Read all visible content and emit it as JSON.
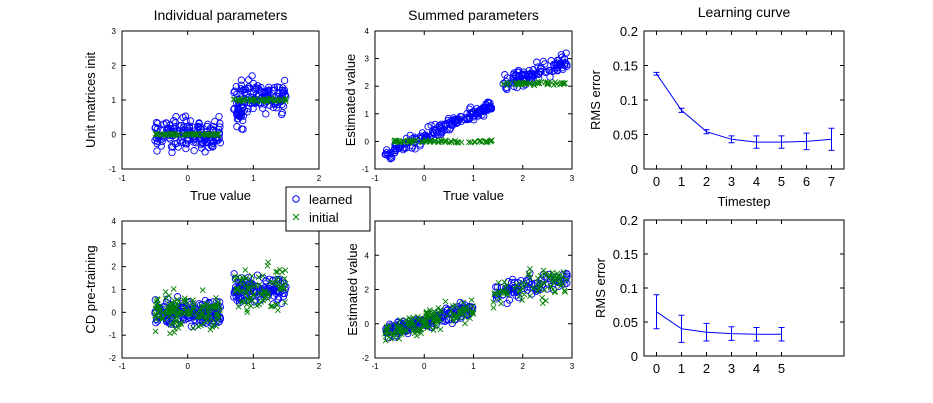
{
  "chart_data": [
    {
      "type": "scatter",
      "title": "Individual parameters",
      "xlabel": "True value",
      "ylabel": "Unit matrices init",
      "xlim": [
        -1,
        2
      ],
      "ylim": [
        -1,
        3
      ],
      "xticks": [
        "-1",
        "0",
        "1",
        "2"
      ],
      "yticks": [
        "-1",
        "0",
        "1",
        "2",
        "3"
      ],
      "series": [
        {
          "name": "learned",
          "color": "#0000ff",
          "marker": "circle",
          "clusters": [
            {
              "x_range": [
                -0.5,
                0.5
              ],
              "y_center": 0.0,
              "y_spread": 0.45,
              "n": 160
            },
            {
              "x_range": [
                0.7,
                1.5
              ],
              "y_center": 1.1,
              "y_spread": 0.45,
              "n": 130
            },
            {
              "x_range": [
                0.75,
                0.85
              ],
              "y_center": 0.6,
              "y_spread": 0.35,
              "n": 25
            }
          ]
        },
        {
          "name": "initial",
          "color": "#008000",
          "marker": "x",
          "clusters": [
            {
              "x_range": [
                -0.5,
                0.5
              ],
              "y_center": 0.0,
              "y_spread": 0.03,
              "n": 60
            },
            {
              "x_range": [
                0.7,
                1.5
              ],
              "y_center": 1.0,
              "y_spread": 0.05,
              "n": 50
            }
          ]
        }
      ]
    },
    {
      "type": "scatter",
      "title": "Summed parameters",
      "xlabel": "True value",
      "ylabel": "Estimated value",
      "xlim": [
        -1,
        3
      ],
      "ylim": [
        -1,
        4
      ],
      "xticks": [
        "-1",
        "0",
        "1",
        "2",
        "3"
      ],
      "yticks": [
        "-1",
        "0",
        "1",
        "2",
        "3",
        "4"
      ],
      "series": [
        {
          "name": "learned",
          "color": "#0000ff",
          "marker": "circle",
          "clusters": [
            {
              "x_range": [
                -0.8,
                1.4
              ],
              "slope": 0.85,
              "intercept": 0.15,
              "spread": 0.25,
              "n": 180
            },
            {
              "x_range": [
                1.6,
                2.9
              ],
              "slope": 0.7,
              "intercept": 0.9,
              "spread": 0.3,
              "n": 110
            }
          ]
        },
        {
          "name": "initial",
          "color": "#008000",
          "marker": "x",
          "clusters": [
            {
              "x_range": [
                -0.7,
                1.4
              ],
              "y_center": 0.0,
              "y_spread": 0.05,
              "n": 70
            },
            {
              "x_range": [
                1.6,
                2.9
              ],
              "y_center": 2.1,
              "y_spread": 0.06,
              "n": 50
            }
          ]
        }
      ]
    },
    {
      "type": "line",
      "title": "Learning curve",
      "xlabel": "Timestep",
      "ylabel": "RMS error",
      "xlim": [
        -0.5,
        7.5
      ],
      "ylim": [
        0,
        0.2
      ],
      "xticks": [
        "0",
        "1",
        "2",
        "3",
        "4",
        "5",
        "6",
        "7"
      ],
      "yticks": [
        "0",
        "0.05",
        "0.1",
        "0.15",
        "0.2"
      ],
      "x": [
        0,
        1,
        2,
        3,
        4,
        5,
        6,
        7
      ],
      "y": [
        0.138,
        0.085,
        0.054,
        0.043,
        0.039,
        0.039,
        0.04,
        0.043
      ],
      "err": [
        0.002,
        0.003,
        0.003,
        0.005,
        0.009,
        0.009,
        0.012,
        0.016
      ],
      "color": "#0000ff"
    },
    {
      "type": "scatter",
      "title": "",
      "xlabel": "",
      "ylabel": "CD pre-training",
      "xlim": [
        -1,
        2
      ],
      "ylim": [
        -2,
        4
      ],
      "xticks": [
        "-1",
        "0",
        "1",
        "2"
      ],
      "yticks": [
        "-2",
        "-1",
        "0",
        "1",
        "2",
        "3",
        "4"
      ],
      "series": [
        {
          "name": "learned",
          "color": "#0000ff",
          "marker": "circle",
          "clusters": [
            {
              "x_range": [
                -0.5,
                0.5
              ],
              "y_center": 0.0,
              "y_spread": 0.6,
              "n": 170
            },
            {
              "x_range": [
                0.7,
                1.5
              ],
              "y_center": 1.0,
              "y_spread": 0.6,
              "n": 120
            }
          ]
        },
        {
          "name": "initial",
          "color": "#008000",
          "marker": "x",
          "clusters": [
            {
              "x_range": [
                -0.5,
                0.5
              ],
              "y_center": 0.0,
              "y_spread": 0.7,
              "n": 150
            },
            {
              "x_range": [
                0.7,
                1.5
              ],
              "y_center": 1.1,
              "y_spread": 0.9,
              "n": 90
            }
          ]
        }
      ]
    },
    {
      "type": "scatter",
      "title": "",
      "xlabel": "",
      "ylabel": "Estimated value",
      "xlim": [
        -1,
        3
      ],
      "ylim": [
        -2,
        6
      ],
      "xticks": [
        "-1",
        "0",
        "1",
        "2",
        "3"
      ],
      "yticks": [
        "-2",
        "0",
        "2",
        "4",
        "6"
      ],
      "series": [
        {
          "name": "learned",
          "color": "#0000ff",
          "marker": "circle",
          "clusters": [
            {
              "x_range": [
                -0.8,
                1.0
              ],
              "slope": 0.8,
              "intercept": 0.1,
              "spread": 0.45,
              "n": 170
            },
            {
              "x_range": [
                1.4,
                2.9
              ],
              "slope": 0.6,
              "intercept": 0.9,
              "spread": 0.55,
              "n": 90
            }
          ]
        },
        {
          "name": "initial",
          "color": "#008000",
          "marker": "x",
          "clusters": [
            {
              "x_range": [
                -0.8,
                1.0
              ],
              "slope": 0.8,
              "intercept": 0.1,
              "spread": 0.6,
              "n": 150
            },
            {
              "x_range": [
                1.4,
                2.9
              ],
              "slope": 0.6,
              "intercept": 0.9,
              "spread": 0.9,
              "n": 80
            }
          ]
        }
      ]
    },
    {
      "type": "line",
      "title": "",
      "xlabel": "",
      "ylabel": "RMS error",
      "xlim": [
        -0.5,
        7.5
      ],
      "ylim": [
        0,
        0.2
      ],
      "xticks": [
        "0",
        "1",
        "2",
        "3",
        "4",
        "5"
      ],
      "yticks": [
        "0",
        "0.05",
        "0.1",
        "0.15",
        "0.2"
      ],
      "x": [
        0,
        1,
        2,
        3,
        4,
        5
      ],
      "y": [
        0.065,
        0.04,
        0.035,
        0.033,
        0.032,
        0.032
      ],
      "err": [
        0.025,
        0.02,
        0.013,
        0.01,
        0.01,
        0.01
      ],
      "color": "#0000ff"
    }
  ],
  "legend": {
    "entries": [
      {
        "label": "learned",
        "marker": "circle",
        "color": "#0000ff"
      },
      {
        "label": "initial",
        "marker": "x",
        "color": "#008000"
      }
    ]
  }
}
